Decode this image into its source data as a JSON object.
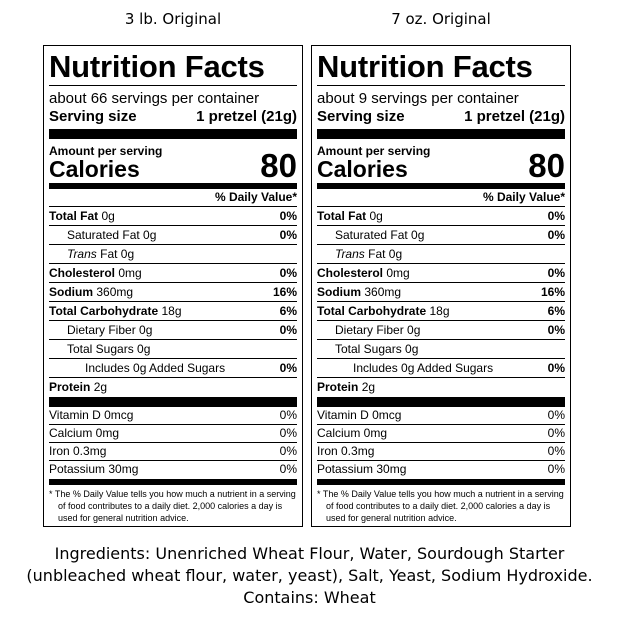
{
  "labels": [
    {
      "heading": "3 lb. Original",
      "title": "Nutrition Facts",
      "servings_per_container": "about 66 servings per container",
      "serving_size_label": "Serving size",
      "serving_size_value": "1 pretzel (21g)",
      "amount_per_serving": "Amount per serving",
      "calories_label": "Calories",
      "calories_value": "80",
      "dv_header": "% Daily Value*",
      "total_fat": {
        "name": "Total Fat",
        "amount": "0g",
        "pct": "0%"
      },
      "saturated_fat": {
        "name": "Saturated Fat 0g",
        "pct": "0%"
      },
      "trans_fat": {
        "name_italic": "Trans",
        "name_rest": " Fat 0g"
      },
      "cholesterol": {
        "name": "Cholesterol",
        "amount": "0mg",
        "pct": "0%"
      },
      "sodium": {
        "name": "Sodium",
        "amount": "360mg",
        "pct": "16%"
      },
      "total_carb": {
        "name": "Total Carbohydrate",
        "amount": "18g",
        "pct": "6%"
      },
      "fiber": {
        "name": "Dietary Fiber 0g",
        "pct": "0%"
      },
      "sugars": {
        "name": "Total Sugars 0g"
      },
      "added_sugars": {
        "name": "Includes 0g Added Sugars",
        "pct": "0%"
      },
      "protein": {
        "name": "Protein",
        "amount": "2g"
      },
      "vitamin_d": {
        "name": "Vitamin D 0mcg",
        "pct": "0%"
      },
      "calcium": {
        "name": "Calcium 0mg",
        "pct": "0%"
      },
      "iron": {
        "name": "Iron 0.3mg",
        "pct": "0%"
      },
      "potassium": {
        "name": "Potassium 30mg",
        "pct": "0%"
      },
      "footnote": "* The % Daily Value tells you how much a nutrient in a serving of food contributes to a daily diet. 2,000 calories a day is used for general nutrition advice."
    },
    {
      "heading": "7 oz. Original",
      "title": "Nutrition Facts",
      "servings_per_container": "about 9 servings per container",
      "serving_size_label": "Serving size",
      "serving_size_value": "1 pretzel (21g)",
      "amount_per_serving": "Amount per serving",
      "calories_label": "Calories",
      "calories_value": "80",
      "dv_header": "% Daily Value*",
      "total_fat": {
        "name": "Total Fat",
        "amount": "0g",
        "pct": "0%"
      },
      "saturated_fat": {
        "name": "Saturated Fat 0g",
        "pct": "0%"
      },
      "trans_fat": {
        "name_italic": "Trans",
        "name_rest": " Fat 0g"
      },
      "cholesterol": {
        "name": "Cholesterol",
        "amount": "0mg",
        "pct": "0%"
      },
      "sodium": {
        "name": "Sodium",
        "amount": "360mg",
        "pct": "16%"
      },
      "total_carb": {
        "name": "Total Carbohydrate",
        "amount": "18g",
        "pct": "6%"
      },
      "fiber": {
        "name": "Dietary Fiber 0g",
        "pct": "0%"
      },
      "sugars": {
        "name": "Total Sugars 0g"
      },
      "added_sugars": {
        "name": "Includes 0g Added Sugars",
        "pct": "0%"
      },
      "protein": {
        "name": "Protein",
        "amount": "2g"
      },
      "vitamin_d": {
        "name": "Vitamin D 0mcg",
        "pct": "0%"
      },
      "calcium": {
        "name": "Calcium 0mg",
        "pct": "0%"
      },
      "iron": {
        "name": "Iron 0.3mg",
        "pct": "0%"
      },
      "potassium": {
        "name": "Potassium 30mg",
        "pct": "0%"
      },
      "footnote": "* The % Daily Value tells you how much a nutrient in a serving of food contributes to a daily diet. 2,000 calories a day is used for general nutrition advice."
    }
  ],
  "ingredients_line1": "Ingredients: Unenriched Wheat Flour, Water, Sourdough Starter",
  "ingredients_line2": "(unbleached wheat flour, water, yeast), Salt, Yeast, Sodium Hydroxide.",
  "contains": "Contains: Wheat"
}
